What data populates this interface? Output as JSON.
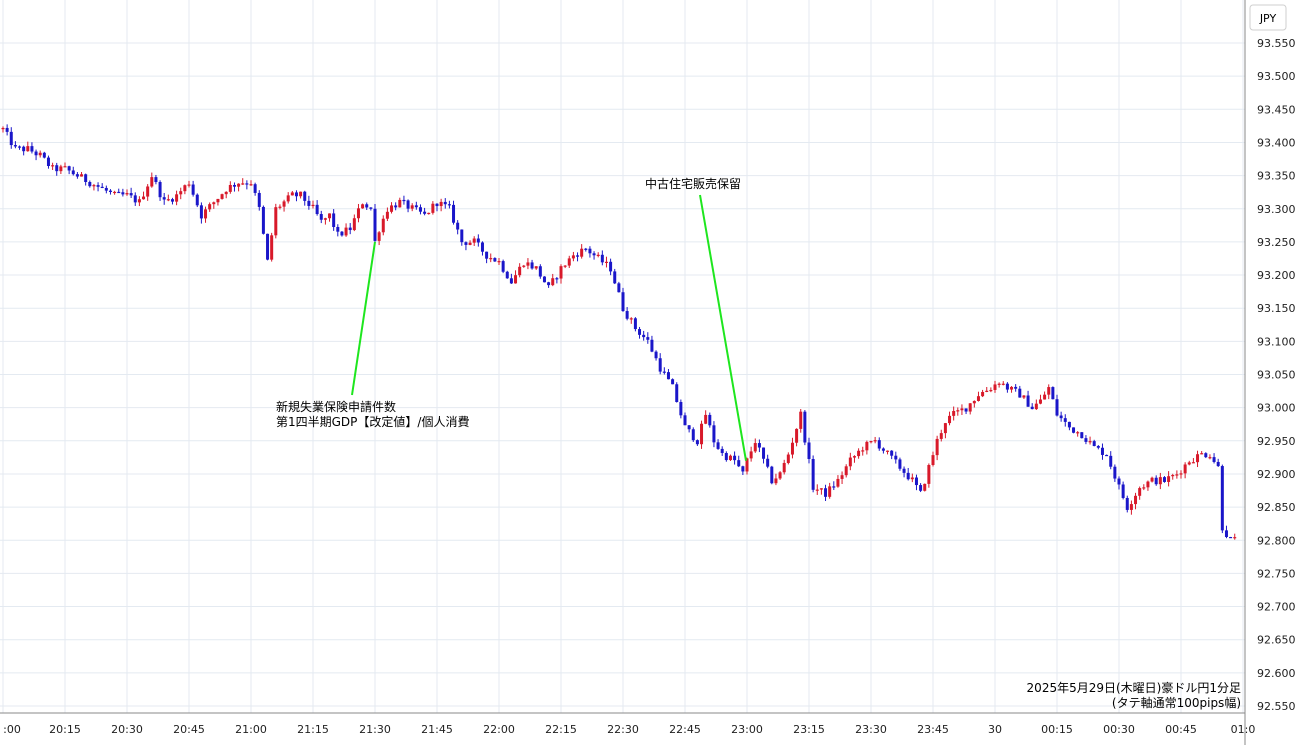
{
  "chart_data": {
    "type": "candlestick",
    "currency_label": "JPY",
    "info_line1": "2025年5月29日(木曜日)豪ドル円1分足",
    "info_line2": "(タテ軸通常100pips幅)",
    "ylim": [
      92.53,
      93.59
    ],
    "y_ticks": [
      "93.550",
      "93.500",
      "93.450",
      "93.400",
      "93.350",
      "93.300",
      "93.250",
      "93.200",
      "93.150",
      "93.100",
      "93.050",
      "93.000",
      "92.950",
      "92.900",
      "92.850",
      "92.800",
      "92.750",
      "92.700",
      "92.650",
      "92.600",
      "92.550"
    ],
    "x_ticks": [
      {
        "label": ":00",
        "minute": 0
      },
      {
        "label": "20:15",
        "minute": 15
      },
      {
        "label": "20:30",
        "minute": 30
      },
      {
        "label": "20:45",
        "minute": 45
      },
      {
        "label": "21:00",
        "minute": 60
      },
      {
        "label": "21:15",
        "minute": 75
      },
      {
        "label": "21:30",
        "minute": 90
      },
      {
        "label": "21:45",
        "minute": 105
      },
      {
        "label": "22:00",
        "minute": 120
      },
      {
        "label": "22:15",
        "minute": 135
      },
      {
        "label": "22:30",
        "minute": 150
      },
      {
        "label": "22:45",
        "minute": 165
      },
      {
        "label": "23:00",
        "minute": 180
      },
      {
        "label": "23:15",
        "minute": 195
      },
      {
        "label": "23:30",
        "minute": 210
      },
      {
        "label": "23:45",
        "minute": 225
      },
      {
        "label": "30",
        "minute": 240
      },
      {
        "label": "00:15",
        "minute": 255
      },
      {
        "label": "00:30",
        "minute": 270
      },
      {
        "label": "00:45",
        "minute": 285
      },
      {
        "label": "01:0",
        "minute": 300
      }
    ],
    "anchors": [
      [
        0,
        93.42
      ],
      [
        3,
        93.39
      ],
      [
        6,
        93.39
      ],
      [
        9,
        93.38
      ],
      [
        12,
        93.36
      ],
      [
        15,
        93.36
      ],
      [
        18,
        93.35
      ],
      [
        21,
        93.34
      ],
      [
        24,
        93.33
      ],
      [
        27,
        93.32
      ],
      [
        30,
        93.32
      ],
      [
        33,
        93.31
      ],
      [
        36,
        93.35
      ],
      [
        39,
        93.31
      ],
      [
        42,
        93.32
      ],
      [
        45,
        93.34
      ],
      [
        48,
        93.29
      ],
      [
        51,
        93.31
      ],
      [
        54,
        93.33
      ],
      [
        57,
        93.34
      ],
      [
        60,
        93.34
      ],
      [
        62,
        93.3
      ],
      [
        64,
        93.22
      ],
      [
        66,
        93.3
      ],
      [
        68,
        93.31
      ],
      [
        70,
        93.32
      ],
      [
        72,
        93.32
      ],
      [
        75,
        93.3
      ],
      [
        77,
        93.28
      ],
      [
        79,
        93.29
      ],
      [
        81,
        93.26
      ],
      [
        84,
        93.27
      ],
      [
        87,
        93.31
      ],
      [
        89,
        93.3
      ],
      [
        90,
        93.25
      ],
      [
        91,
        93.27
      ],
      [
        93,
        93.3
      ],
      [
        96,
        93.31
      ],
      [
        99,
        93.3
      ],
      [
        102,
        93.29
      ],
      [
        105,
        93.31
      ],
      [
        108,
        93.3
      ],
      [
        111,
        93.25
      ],
      [
        114,
        93.25
      ],
      [
        117,
        93.23
      ],
      [
        120,
        93.22
      ],
      [
        123,
        93.19
      ],
      [
        126,
        93.22
      ],
      [
        129,
        93.21
      ],
      [
        132,
        93.18
      ],
      [
        135,
        93.21
      ],
      [
        138,
        93.23
      ],
      [
        141,
        93.24
      ],
      [
        143,
        93.23
      ],
      [
        145,
        93.22
      ],
      [
        147,
        93.21
      ],
      [
        150,
        93.15
      ],
      [
        153,
        93.12
      ],
      [
        156,
        93.1
      ],
      [
        159,
        93.06
      ],
      [
        162,
        93.03
      ],
      [
        165,
        92.97
      ],
      [
        168,
        92.95
      ],
      [
        170,
        92.99
      ],
      [
        172,
        92.95
      ],
      [
        174,
        92.93
      ],
      [
        177,
        92.92
      ],
      [
        179,
        92.9
      ],
      [
        180,
        92.92
      ],
      [
        182,
        92.95
      ],
      [
        184,
        92.92
      ],
      [
        186,
        92.89
      ],
      [
        188,
        92.9
      ],
      [
        190,
        92.93
      ],
      [
        193,
        92.99
      ],
      [
        196,
        92.88
      ],
      [
        199,
        92.87
      ],
      [
        202,
        92.89
      ],
      [
        205,
        92.92
      ],
      [
        208,
        92.94
      ],
      [
        211,
        92.95
      ],
      [
        214,
        92.93
      ],
      [
        217,
        92.91
      ],
      [
        220,
        92.89
      ],
      [
        222,
        92.87
      ],
      [
        224,
        92.91
      ],
      [
        226,
        92.95
      ],
      [
        228,
        92.98
      ],
      [
        230,
        92.99
      ],
      [
        233,
        93.0
      ],
      [
        236,
        93.02
      ],
      [
        239,
        93.03
      ],
      [
        241,
        93.04
      ],
      [
        243,
        93.03
      ],
      [
        246,
        93.02
      ],
      [
        249,
        93.0
      ],
      [
        251,
        93.01
      ],
      [
        253,
        93.03
      ],
      [
        255,
        92.99
      ],
      [
        258,
        92.97
      ],
      [
        261,
        92.96
      ],
      [
        264,
        92.94
      ],
      [
        267,
        92.93
      ],
      [
        270,
        92.88
      ],
      [
        272,
        92.85
      ],
      [
        275,
        92.88
      ],
      [
        278,
        92.89
      ],
      [
        281,
        92.89
      ],
      [
        284,
        92.9
      ],
      [
        287,
        92.92
      ],
      [
        290,
        92.93
      ],
      [
        292,
        92.93
      ],
      [
        294,
        92.91
      ],
      [
        295,
        92.82
      ],
      [
        297,
        92.8
      ],
      [
        298,
        92.8
      ]
    ],
    "annotations": [
      {
        "lines": [
          "新規失業保険申請件数",
          "第1四半期GDP【改定値】/個人消費"
        ],
        "minute": 90
      },
      {
        "lines": [
          "中古住宅販売保留"
        ],
        "minute": 180
      }
    ]
  }
}
